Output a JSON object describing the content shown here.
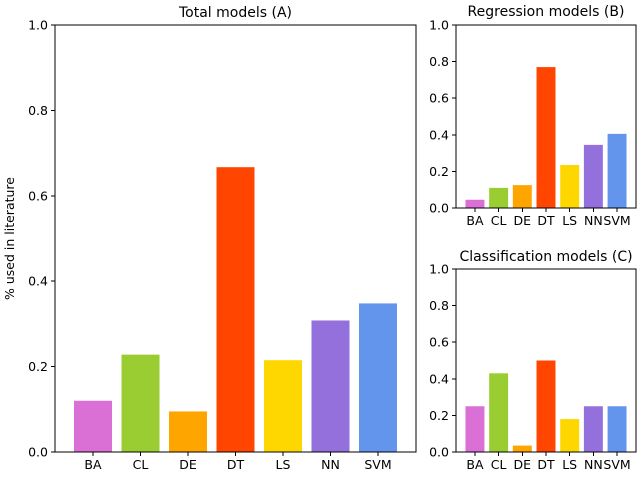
{
  "chart_data": [
    {
      "type": "bar",
      "title": "Total models (A)",
      "ylabel": "% used in literature",
      "xlabel": "",
      "ylim": [
        0,
        1.0
      ],
      "yticks": [
        "0.0",
        "0.2",
        "0.4",
        "0.6",
        "0.8",
        "1.0"
      ],
      "categories": [
        "BA",
        "CL",
        "DE",
        "DT",
        "LS",
        "NN",
        "SVM"
      ],
      "values": [
        0.12,
        0.228,
        0.095,
        0.667,
        0.215,
        0.308,
        0.348
      ],
      "colors": [
        "#da70d6",
        "#9acd32",
        "#ffa500",
        "#ff4500",
        "#ffd700",
        "#9370db",
        "#6495ed"
      ],
      "grid": false
    },
    {
      "type": "bar",
      "title": "Regression models (B)",
      "ylabel": "",
      "xlabel": "",
      "ylim": [
        0,
        1.0
      ],
      "yticks": [
        "0.0",
        "0.2",
        "0.4",
        "0.6",
        "0.8",
        "1.0"
      ],
      "categories": [
        "BA",
        "CL",
        "DE",
        "DT",
        "LS",
        "NN",
        "SVM"
      ],
      "values": [
        0.045,
        0.11,
        0.125,
        0.77,
        0.235,
        0.345,
        0.405
      ],
      "colors": [
        "#da70d6",
        "#9acd32",
        "#ffa500",
        "#ff4500",
        "#ffd700",
        "#9370db",
        "#6495ed"
      ],
      "grid": false
    },
    {
      "type": "bar",
      "title": "Classification models (C)",
      "ylabel": "",
      "xlabel": "",
      "ylim": [
        0,
        1.0
      ],
      "yticks": [
        "0.0",
        "0.2",
        "0.4",
        "0.6",
        "0.8",
        "1.0"
      ],
      "categories": [
        "BA",
        "CL",
        "DE",
        "DT",
        "LS",
        "NN",
        "SVM"
      ],
      "values": [
        0.25,
        0.43,
        0.035,
        0.5,
        0.18,
        0.25,
        0.25
      ],
      "colors": [
        "#da70d6",
        "#9acd32",
        "#ffa500",
        "#ff4500",
        "#ffd700",
        "#9370db",
        "#6495ed"
      ],
      "grid": false
    }
  ]
}
